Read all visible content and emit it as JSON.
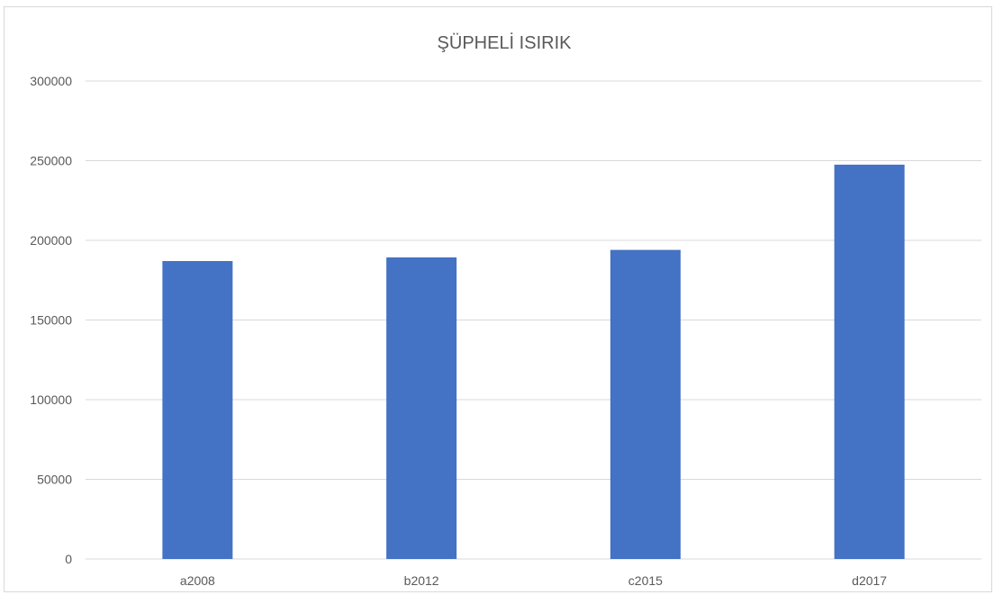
{
  "chart_data": {
    "type": "bar",
    "title": "ŞÜPHELİ ISIRIK",
    "xlabel": "",
    "ylabel": "",
    "categories": [
      "a2008",
      "b2012",
      "c2015",
      "d2017"
    ],
    "series": [
      {
        "values": [
          187000,
          189300,
          194000,
          247500
        ],
        "color": "#4472c4"
      }
    ],
    "ylim": [
      0,
      300000
    ],
    "yticks": [
      "0",
      "50000",
      "100000",
      "150000",
      "200000",
      "250000",
      "300000"
    ],
    "grid": true,
    "legend": "none"
  }
}
